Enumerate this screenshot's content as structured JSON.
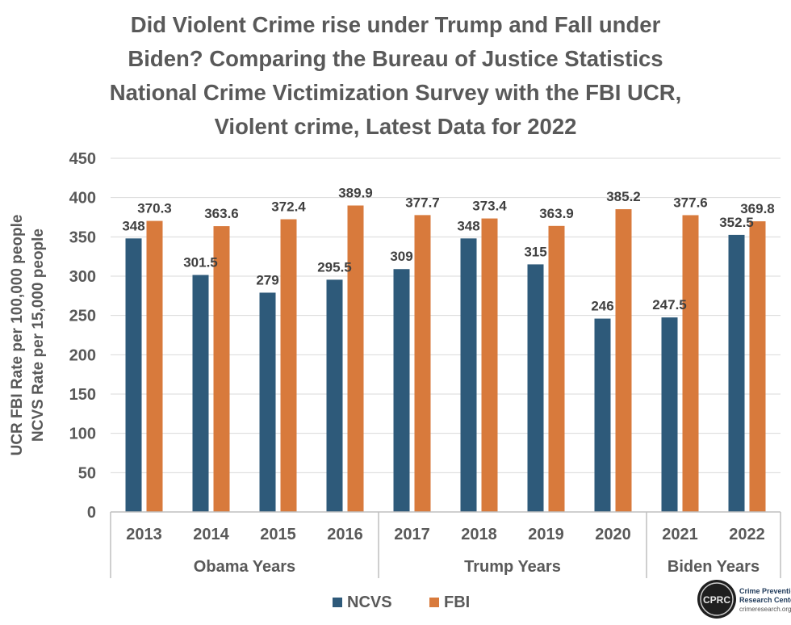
{
  "title_lines": [
    "Did Violent Crime rise under Trump and Fall under",
    "Biden? Comparing the Bureau of Justice Statistics",
    "National Crime Victimization Survey with the FBI UCR,",
    "Violent crime, Latest Data for 2022"
  ],
  "chart_data": {
    "type": "bar",
    "title": "Did Violent Crime rise under Trump and Fall under Biden? Comparing the Bureau of Justice Statistics National Crime Victimization Survey with the FBI UCR, Violent crime, Latest Data for 2022",
    "ylabel_lines": [
      "UCR FBI Rate per 100,000 people",
      "NCVS Rate per 15,000 people"
    ],
    "ylim": [
      0,
      450
    ],
    "yticks": [
      0,
      50,
      100,
      150,
      200,
      250,
      300,
      350,
      400,
      450
    ],
    "categories": [
      "2013",
      "2014",
      "2015",
      "2016",
      "2017",
      "2018",
      "2019",
      "2020",
      "2021",
      "2022"
    ],
    "groups": [
      {
        "label": "Obama Years",
        "categories": [
          "2013",
          "2014",
          "2015",
          "2016"
        ]
      },
      {
        "label": "Trump Years",
        "categories": [
          "2017",
          "2018",
          "2019",
          "2020"
        ]
      },
      {
        "label": "Biden Years",
        "categories": [
          "2021",
          "2022"
        ]
      }
    ],
    "series": [
      {
        "name": "NCVS",
        "color": "#2e5a7a",
        "values": [
          348,
          301.5,
          279,
          295.5,
          309,
          348,
          315,
          246,
          247.5,
          352.5
        ]
      },
      {
        "name": "FBI",
        "color": "#d87a3c",
        "values": [
          370.3,
          363.6,
          372.4,
          389.9,
          377.7,
          373.4,
          363.9,
          385.2,
          377.6,
          369.8
        ]
      }
    ],
    "data_labels": [
      [
        "348",
        "301.5",
        "279",
        "295.5",
        "309",
        "348",
        "315",
        "246",
        "247.5",
        "352.5"
      ],
      [
        "370.3",
        "363.6",
        "372.4",
        "389.9",
        "377.7",
        "373.4",
        "363.9",
        "385.2",
        "377.6",
        "369.8"
      ]
    ],
    "grid": true,
    "legend_position": "bottom"
  },
  "logo": {
    "monogram": "CPRC",
    "line1": "Crime Prevention",
    "line2": "Research Center",
    "url": "crimeresearch.org"
  }
}
